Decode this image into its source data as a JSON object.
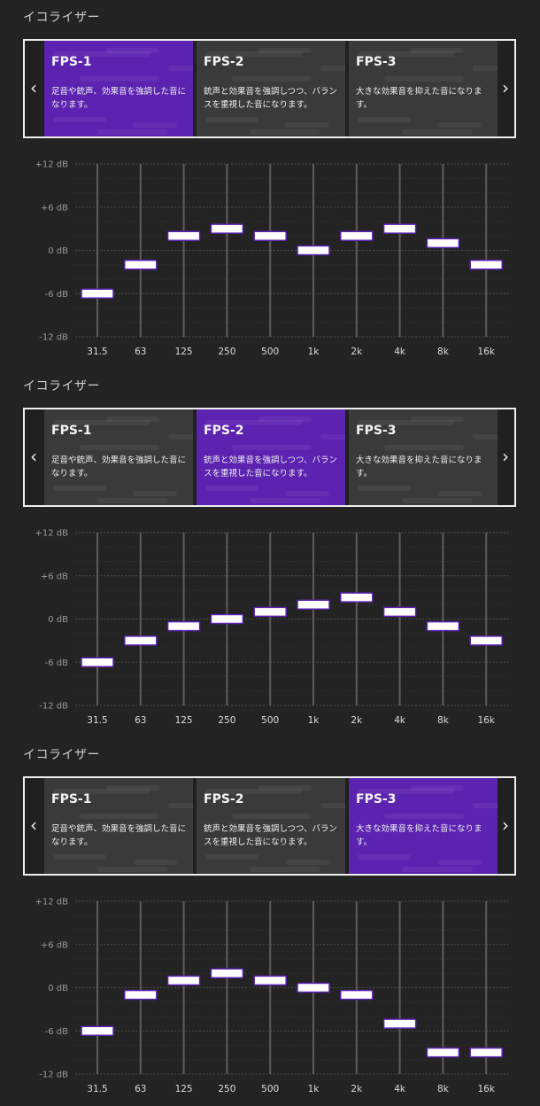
{
  "presets": [
    {
      "name": "FPS-1",
      "description": "足音や銃声、効果音を強調した音になります。"
    },
    {
      "name": "FPS-2",
      "description": "銃声と効果音を強調しつつ、バランスを重視した音になります。"
    },
    {
      "name": "FPS-3",
      "description": "大きな効果音を抑えた音になります。"
    }
  ],
  "equalizers": [
    {
      "title": "イコライザー",
      "active_preset": 0
    },
    {
      "title": "イコライザー",
      "active_preset": 1
    },
    {
      "title": "イコライザー",
      "active_preset": 2
    }
  ],
  "nav": {
    "prev_icon": "chevron-left-icon",
    "next_icon": "chevron-right-icon",
    "prev_glyph": "‹",
    "next_glyph": "›"
  },
  "colors": {
    "accent": "#5b23b0",
    "card": "#3a3a3a",
    "background": "#232323",
    "handle": "#ffffff"
  },
  "chart_data": [
    {
      "type": "line",
      "categories": [
        "31.5",
        "63",
        "125",
        "250",
        "500",
        "1k",
        "2k",
        "4k",
        "8k",
        "16k"
      ],
      "ylabels": [
        "+12 dB",
        "+6 dB",
        "0 dB",
        "-6 dB",
        "-12 dB"
      ],
      "ylim": [
        -12,
        12
      ],
      "series": [
        {
          "values": [
            -6,
            -2,
            2,
            3,
            2,
            0,
            2,
            3,
            1,
            -2
          ]
        }
      ]
    },
    {
      "type": "line",
      "categories": [
        "31.5",
        "63",
        "125",
        "250",
        "500",
        "1k",
        "2k",
        "4k",
        "8k",
        "16k"
      ],
      "ylabels": [
        "+12 dB",
        "+6 dB",
        "0 dB",
        "-6 dB",
        "-12 dB"
      ],
      "ylim": [
        -12,
        12
      ],
      "series": [
        {
          "values": [
            -6,
            -3,
            -1,
            0,
            1,
            2,
            3,
            1,
            -1,
            -3
          ]
        }
      ]
    },
    {
      "type": "line",
      "categories": [
        "31.5",
        "63",
        "125",
        "250",
        "500",
        "1k",
        "2k",
        "4k",
        "8k",
        "16k"
      ],
      "ylabels": [
        "+12 dB",
        "+6 dB",
        "0 dB",
        "-6 dB",
        "-12 dB"
      ],
      "ylim": [
        -12,
        12
      ],
      "series": [
        {
          "values": [
            -6,
            -1,
            1,
            2,
            1,
            0,
            -1,
            -5,
            -9,
            -9
          ]
        }
      ]
    }
  ]
}
